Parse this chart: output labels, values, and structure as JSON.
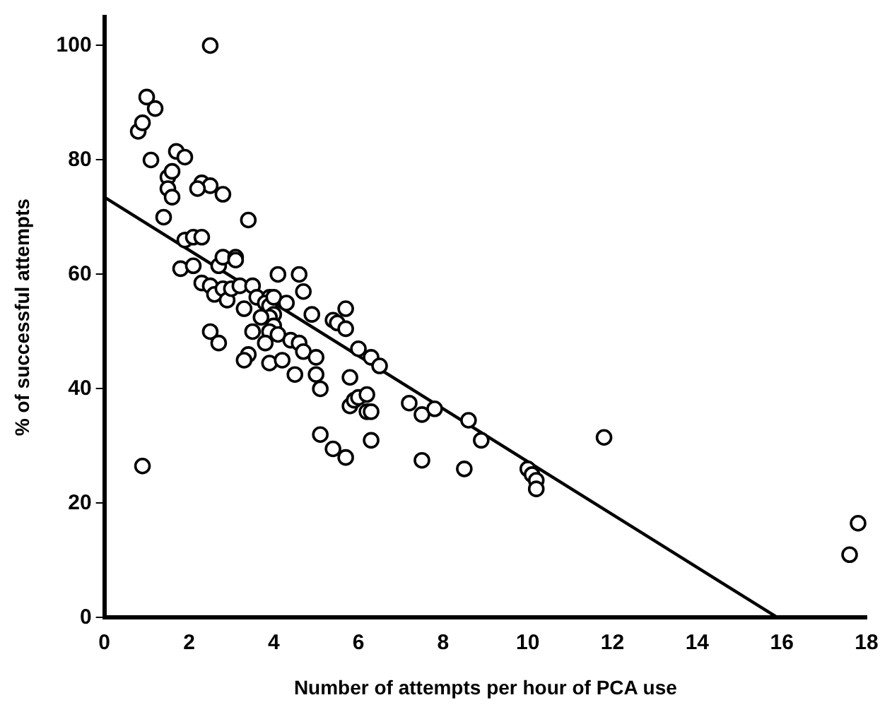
{
  "chart_data": {
    "type": "scatter",
    "xlabel": "Number of attempts per hour of PCA use",
    "ylabel": "% of successful attempts",
    "xlim": [
      0,
      18
    ],
    "xticks": [
      0,
      2,
      4,
      6,
      8,
      10,
      12,
      14,
      16,
      18
    ],
    "ylim": [
      0,
      105
    ],
    "yticks": [
      0,
      20,
      40,
      60,
      80,
      100
    ],
    "grid": false,
    "legend": false,
    "marker": "circle",
    "series": [
      {
        "type": "scatter",
        "color": "#000000",
        "x": [
          0.8,
          1.0,
          0.9,
          1.2,
          1.1,
          2.5,
          1.7,
          1.9,
          1.5,
          1.6,
          1.5,
          1.6,
          1.4,
          2.3,
          2.5,
          2.8,
          2.2,
          3.4,
          1.9,
          2.1,
          2.3,
          1.8,
          2.1,
          2.7,
          2.8,
          3.1,
          3.1,
          2.3,
          2.5,
          2.6,
          2.8,
          2.9,
          3.0,
          3.2,
          3.5,
          3.6,
          3.9,
          3.8,
          3.9,
          4.0,
          4.0,
          3.9,
          3.7,
          4.0,
          4.3,
          4.1,
          4.6,
          4.7,
          3.3,
          4.9,
          2.5,
          2.7,
          3.5,
          3.9,
          3.8,
          4.1,
          4.4,
          4.6,
          4.7,
          5.0,
          3.9,
          3.4,
          3.3,
          4.5,
          4.2,
          5.0,
          5.4,
          5.5,
          5.7,
          5.7,
          6.0,
          6.3,
          6.5,
          5.8,
          5.8,
          5.9,
          6.0,
          6.2,
          6.2,
          6.3,
          7.2,
          7.5,
          7.8,
          8.6,
          8.9,
          10.0,
          10.1,
          10.2,
          10.2,
          11.8,
          5.1,
          5.1,
          5.4,
          5.7,
          6.3,
          7.5,
          8.5,
          0.9,
          17.6,
          17.8
        ],
        "values": [
          85,
          91,
          86.5,
          89,
          80,
          100,
          81.5,
          80.5,
          77,
          78,
          75,
          73.5,
          70,
          76,
          75.5,
          74,
          75,
          69.5,
          66,
          66.5,
          66.5,
          61,
          61.5,
          61.5,
          63,
          63,
          62.5,
          58.5,
          58,
          56.5,
          57.5,
          55.5,
          57.5,
          58,
          58,
          56,
          56,
          55,
          54.5,
          56,
          53,
          52.5,
          52.5,
          51,
          55,
          60,
          60,
          57,
          54,
          53,
          50,
          48,
          50,
          50,
          48,
          49.5,
          48.5,
          48,
          46.5,
          45.5,
          44.5,
          46,
          45,
          42.5,
          45,
          42.5,
          52,
          51.5,
          54,
          50.5,
          47,
          45.5,
          44,
          42,
          37,
          38,
          38.5,
          39,
          36,
          36,
          37.5,
          35.5,
          36.5,
          34.5,
          31,
          26,
          25,
          24,
          22.5,
          31.5,
          40,
          32,
          29.5,
          28,
          31,
          27.5,
          26,
          26.5,
          11,
          16.5
        ]
      },
      {
        "type": "line",
        "color": "#000000",
        "x": [
          0,
          15.9
        ],
        "values": [
          73.5,
          0
        ],
        "marker": "none",
        "line_style": "solid"
      }
    ]
  }
}
